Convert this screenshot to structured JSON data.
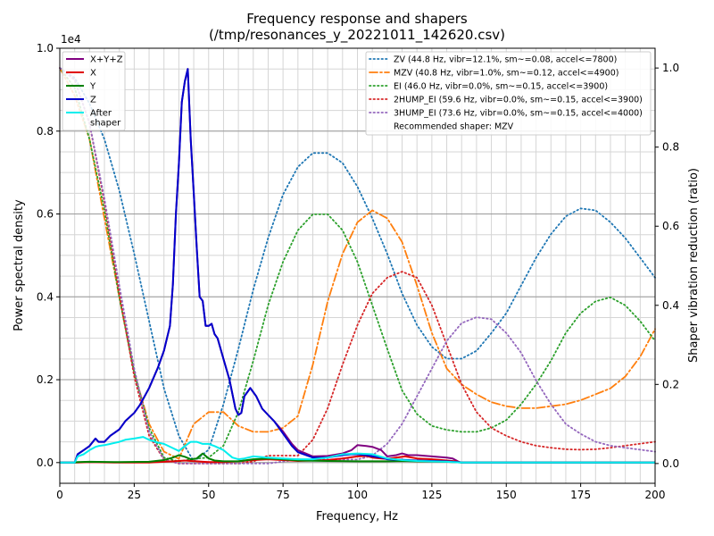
{
  "chart_data": {
    "type": "line",
    "title": [
      "Frequency response and shapers",
      "(/tmp/resonances_y_20221011_142620.csv)"
    ],
    "xlabel": "Frequency, Hz",
    "ylabel_left": "Power spectral density",
    "ylabel_right": "Shaper vibration reduction (ratio)",
    "xlim": [
      0,
      200
    ],
    "ylim_left": [
      -0.05,
      1.0
    ],
    "ylim_right": [
      -0.05,
      1.05
    ],
    "scale_label": "1e4",
    "xticks": [
      0,
      25,
      50,
      75,
      100,
      125,
      150,
      175,
      200
    ],
    "yticks_left": [
      0.0,
      0.2,
      0.4,
      0.6,
      0.8,
      1.0
    ],
    "yticks_left_labels": [
      "0.0",
      "0.2",
      "0.4",
      "0.6",
      "0.8",
      "1.0"
    ],
    "yticks_right": [
      0.0,
      0.2,
      0.4,
      0.6,
      0.8,
      1.0
    ],
    "yticks_right_labels": [
      "0.0",
      "0.2",
      "0.4",
      "0.6",
      "0.8",
      "1.0"
    ],
    "grid": true,
    "legend_left": {
      "placement": "top-left",
      "entries": [
        "X+Y+Z",
        "X",
        "Y",
        "Z",
        "After\nshaper"
      ]
    },
    "legend_right": {
      "placement": "top-right",
      "entries": [
        "ZV (44.8 Hz, vibr=12.1%, sm~=0.08, accel<=7800)",
        "MZV (40.8 Hz, vibr=1.0%, sm~=0.12, accel<=4900)",
        "EI (46.0 Hz, vibr=0.0%, sm~=0.15, accel<=3900)",
        "2HUMP_EI (59.6 Hz, vibr=0.0%, sm~=0.15, accel<=3900)",
        "3HUMP_EI (73.6 Hz, vibr=0.0%, sm~=0.15, accel<=4000)",
        "Recommended shaper: MZV"
      ]
    },
    "psd_series": [
      {
        "name": "X+Y+Z",
        "color": "#800080",
        "style": "solid",
        "x": [
          0,
          5,
          6,
          8,
          10,
          12,
          13,
          15,
          17,
          20,
          22,
          25,
          27,
          30,
          33,
          35,
          37,
          38,
          39,
          40,
          41,
          42,
          43,
          44,
          45,
          46,
          47,
          48,
          49,
          50,
          51,
          52,
          53,
          55,
          57,
          59,
          60,
          61,
          62,
          63,
          64,
          65,
          66,
          68,
          70,
          72,
          75,
          78,
          80,
          85,
          90,
          95,
          98,
          100,
          103,
          105,
          108,
          110,
          113,
          115,
          117,
          120,
          125,
          130,
          132,
          134,
          135,
          140,
          160,
          200
        ],
        "y": [
          0.0,
          0.0,
          0.02,
          0.03,
          0.04,
          0.058,
          0.05,
          0.05,
          0.065,
          0.08,
          0.1,
          0.12,
          0.14,
          0.18,
          0.23,
          0.27,
          0.33,
          0.43,
          0.6,
          0.72,
          0.87,
          0.92,
          0.95,
          0.78,
          0.65,
          0.52,
          0.4,
          0.39,
          0.33,
          0.33,
          0.335,
          0.31,
          0.3,
          0.25,
          0.2,
          0.13,
          0.115,
          0.12,
          0.16,
          0.17,
          0.18,
          0.17,
          0.16,
          0.13,
          0.115,
          0.1,
          0.075,
          0.045,
          0.03,
          0.015,
          0.016,
          0.022,
          0.03,
          0.042,
          0.04,
          0.038,
          0.03,
          0.015,
          0.018,
          0.022,
          0.018,
          0.018,
          0.015,
          0.012,
          0.01,
          0.002,
          0.0,
          0.0,
          0.0,
          0.0
        ]
      },
      {
        "name": "X",
        "color": "#e00000",
        "style": "solid",
        "x": [
          0,
          5,
          6,
          10,
          20,
          30,
          35,
          38,
          40,
          42,
          44,
          46,
          48,
          50,
          52,
          55,
          60,
          65,
          70,
          75,
          80,
          90,
          95,
          100,
          103,
          105,
          108,
          110,
          113,
          116,
          120,
          125,
          130,
          133,
          135,
          200
        ],
        "y": [
          0.0,
          0.0,
          0.0,
          0.001,
          0.0,
          0.0,
          0.002,
          0.003,
          0.004,
          0.005,
          0.004,
          0.003,
          0.002,
          0.001,
          0.001,
          0.001,
          0.003,
          0.006,
          0.008,
          0.006,
          0.004,
          0.006,
          0.01,
          0.015,
          0.016,
          0.012,
          0.01,
          0.009,
          0.012,
          0.015,
          0.01,
          0.008,
          0.005,
          0.003,
          0.0,
          0.0
        ]
      },
      {
        "name": "Y",
        "color": "#008000",
        "style": "solid",
        "x": [
          0,
          5,
          6,
          10,
          20,
          30,
          35,
          38,
          40,
          42,
          44,
          46,
          48,
          50,
          52,
          55,
          60,
          65,
          70,
          75,
          80,
          90,
          100,
          110,
          115,
          120,
          130,
          135,
          200
        ],
        "y": [
          0.0,
          0.0,
          0.001,
          0.002,
          0.001,
          0.002,
          0.006,
          0.012,
          0.018,
          0.014,
          0.008,
          0.01,
          0.022,
          0.01,
          0.005,
          0.003,
          0.003,
          0.008,
          0.01,
          0.008,
          0.005,
          0.004,
          0.003,
          0.003,
          0.004,
          0.003,
          0.002,
          0.0,
          0.0
        ]
      },
      {
        "name": "Z",
        "color": "#0000cc",
        "style": "solid",
        "x": [
          0,
          5,
          6,
          8,
          10,
          12,
          13,
          15,
          17,
          20,
          22,
          25,
          27,
          30,
          33,
          35,
          37,
          38,
          39,
          40,
          41,
          42,
          43,
          44,
          45,
          46,
          47,
          48,
          49,
          50,
          51,
          52,
          53,
          55,
          57,
          59,
          60,
          61,
          62,
          63,
          64,
          65,
          66,
          68,
          70,
          72,
          75,
          78,
          80,
          85,
          90,
          95,
          98,
          100,
          103,
          105,
          108,
          110,
          113,
          115,
          117,
          120,
          125,
          130,
          132,
          134,
          135,
          140,
          160,
          200
        ],
        "y": [
          0.0,
          0.0,
          0.02,
          0.03,
          0.04,
          0.058,
          0.05,
          0.05,
          0.065,
          0.08,
          0.1,
          0.12,
          0.14,
          0.18,
          0.23,
          0.27,
          0.33,
          0.43,
          0.6,
          0.72,
          0.87,
          0.92,
          0.95,
          0.78,
          0.65,
          0.52,
          0.4,
          0.39,
          0.33,
          0.33,
          0.335,
          0.31,
          0.3,
          0.25,
          0.2,
          0.13,
          0.115,
          0.12,
          0.16,
          0.17,
          0.18,
          0.17,
          0.16,
          0.13,
          0.115,
          0.1,
          0.07,
          0.04,
          0.025,
          0.012,
          0.012,
          0.018,
          0.02,
          0.02,
          0.018,
          0.015,
          0.012,
          0.008,
          0.007,
          0.007,
          0.006,
          0.005,
          0.004,
          0.003,
          0.002,
          0.001,
          0.0,
          0.0,
          0.0,
          0.0
        ]
      },
      {
        "name": "After\nshaper",
        "color": "#00eeee",
        "style": "solid",
        "x": [
          0,
          5,
          6,
          8,
          10,
          12,
          13,
          15,
          17,
          20,
          22,
          25,
          28,
          30,
          33,
          35,
          38,
          40,
          42,
          44,
          46,
          48,
          50,
          52,
          55,
          58,
          60,
          62,
          65,
          70,
          75,
          80,
          85,
          90,
          95,
          100,
          105,
          110,
          115,
          120,
          130,
          135,
          200
        ],
        "y": [
          0.0,
          0.0,
          0.015,
          0.02,
          0.03,
          0.038,
          0.04,
          0.042,
          0.045,
          0.05,
          0.055,
          0.058,
          0.062,
          0.055,
          0.048,
          0.045,
          0.035,
          0.028,
          0.04,
          0.05,
          0.05,
          0.045,
          0.045,
          0.04,
          0.03,
          0.012,
          0.008,
          0.01,
          0.015,
          0.012,
          0.01,
          0.008,
          0.008,
          0.012,
          0.02,
          0.022,
          0.02,
          0.01,
          0.006,
          0.004,
          0.002,
          0.0,
          0.0
        ]
      }
    ],
    "shaper_series": [
      {
        "name": "ZV (44.8 Hz, vibr=12.1%, sm~=0.08, accel<=7800)",
        "color": "#1f77b4",
        "style": "dotted",
        "x": [
          0,
          5,
          10,
          15,
          20,
          25,
          30,
          35,
          40,
          45,
          50,
          55,
          60,
          65,
          70,
          75,
          80,
          85,
          90,
          95,
          100,
          105,
          110,
          115,
          120,
          125,
          130,
          135,
          140,
          145,
          150,
          155,
          160,
          165,
          170,
          175,
          180,
          185,
          190,
          195,
          200
        ],
        "y": [
          1.0,
          0.975,
          0.91,
          0.82,
          0.69,
          0.53,
          0.36,
          0.19,
          0.07,
          0.005,
          0.035,
          0.15,
          0.29,
          0.44,
          0.57,
          0.68,
          0.75,
          0.785,
          0.785,
          0.76,
          0.7,
          0.62,
          0.53,
          0.43,
          0.35,
          0.295,
          0.265,
          0.265,
          0.285,
          0.33,
          0.38,
          0.45,
          0.52,
          0.58,
          0.625,
          0.645,
          0.64,
          0.61,
          0.57,
          0.52,
          0.47
        ]
      },
      {
        "name": "MZV (40.8 Hz, vibr=1.0%, sm~=0.12, accel<=4900)",
        "color": "#ff7f0e",
        "style": "dashdot",
        "x": [
          0,
          5,
          10,
          15,
          20,
          25,
          30,
          35,
          40,
          45,
          50,
          55,
          60,
          65,
          70,
          75,
          80,
          85,
          90,
          95,
          100,
          105,
          110,
          115,
          120,
          125,
          130,
          135,
          140,
          145,
          150,
          155,
          160,
          165,
          170,
          175,
          180,
          185,
          190,
          195,
          200
        ],
        "y": [
          1.0,
          0.93,
          0.82,
          0.62,
          0.42,
          0.23,
          0.1,
          0.03,
          0.012,
          0.1,
          0.13,
          0.13,
          0.095,
          0.08,
          0.08,
          0.09,
          0.12,
          0.25,
          0.41,
          0.53,
          0.61,
          0.64,
          0.62,
          0.56,
          0.45,
          0.33,
          0.24,
          0.2,
          0.175,
          0.155,
          0.145,
          0.14,
          0.14,
          0.145,
          0.15,
          0.16,
          0.175,
          0.19,
          0.22,
          0.27,
          0.34
        ]
      },
      {
        "name": "EI (46.0 Hz, vibr=0.0%, sm~=0.15, accel<=3900)",
        "color": "#2ca02c",
        "style": "dotted",
        "x": [
          0,
          5,
          10,
          15,
          20,
          25,
          30,
          35,
          40,
          45,
          50,
          55,
          60,
          65,
          70,
          75,
          80,
          85,
          90,
          95,
          100,
          105,
          110,
          115,
          120,
          125,
          130,
          135,
          140,
          145,
          150,
          155,
          160,
          165,
          170,
          175,
          180,
          185,
          190,
          195,
          200
        ],
        "y": [
          1.0,
          0.95,
          0.82,
          0.64,
          0.42,
          0.23,
          0.09,
          0.015,
          0.005,
          0.012,
          0.015,
          0.045,
          0.13,
          0.26,
          0.4,
          0.51,
          0.59,
          0.63,
          0.63,
          0.59,
          0.51,
          0.4,
          0.29,
          0.185,
          0.125,
          0.095,
          0.085,
          0.08,
          0.08,
          0.09,
          0.11,
          0.15,
          0.2,
          0.26,
          0.33,
          0.38,
          0.41,
          0.42,
          0.4,
          0.36,
          0.31
        ]
      },
      {
        "name": "2HUMP_EI (59.6 Hz, vibr=0.0%, sm~=0.15, accel<=3900)",
        "color": "#d62728",
        "style": "dotted",
        "x": [
          0,
          5,
          10,
          15,
          20,
          25,
          30,
          35,
          40,
          45,
          50,
          55,
          60,
          65,
          70,
          75,
          80,
          85,
          90,
          95,
          100,
          105,
          110,
          115,
          120,
          125,
          130,
          135,
          140,
          145,
          150,
          155,
          160,
          165,
          170,
          175,
          180,
          185,
          190,
          195,
          200
        ],
        "y": [
          1.0,
          0.97,
          0.86,
          0.66,
          0.43,
          0.22,
          0.07,
          0.01,
          0.0,
          0.0,
          0.0,
          0.0,
          0.0,
          0.005,
          0.02,
          0.02,
          0.02,
          0.06,
          0.14,
          0.25,
          0.35,
          0.43,
          0.47,
          0.485,
          0.47,
          0.4,
          0.3,
          0.2,
          0.13,
          0.09,
          0.07,
          0.055,
          0.045,
          0.04,
          0.036,
          0.035,
          0.036,
          0.04,
          0.045,
          0.05,
          0.055
        ]
      },
      {
        "name": "3HUMP_EI (73.6 Hz, vibr=0.0%, sm~=0.15, accel<=4000)",
        "color": "#9467bd",
        "style": "dotted",
        "x": [
          0,
          5,
          10,
          15,
          20,
          25,
          30,
          35,
          40,
          45,
          50,
          55,
          60,
          65,
          70,
          75,
          80,
          85,
          90,
          95,
          100,
          105,
          110,
          115,
          120,
          125,
          130,
          135,
          140,
          145,
          150,
          155,
          160,
          165,
          170,
          175,
          180,
          185,
          190,
          195,
          200
        ],
        "y": [
          1.0,
          0.97,
          0.86,
          0.67,
          0.45,
          0.24,
          0.08,
          0.01,
          0.0,
          0.0,
          0.0,
          0.0,
          0.0,
          0.0,
          0.0,
          0.005,
          0.01,
          0.01,
          0.01,
          0.01,
          0.01,
          0.02,
          0.05,
          0.1,
          0.17,
          0.24,
          0.31,
          0.355,
          0.37,
          0.365,
          0.33,
          0.28,
          0.21,
          0.15,
          0.1,
          0.075,
          0.055,
          0.045,
          0.04,
          0.035,
          0.03
        ]
      }
    ]
  }
}
